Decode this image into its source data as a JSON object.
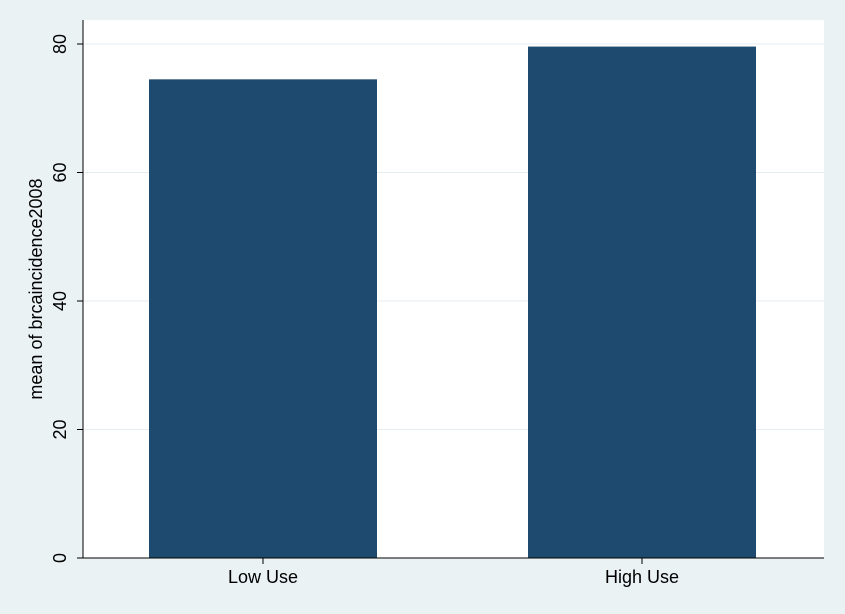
{
  "chart_data": {
    "type": "bar",
    "categories": [
      "Low Use",
      "High Use"
    ],
    "values": [
      74.5,
      79.6
    ],
    "title": "",
    "xlabel": "",
    "ylabel": "mean of brcaincidence2008",
    "ylim": [
      0,
      80
    ],
    "yticks": [
      0,
      20,
      40,
      60,
      80
    ],
    "grid": true,
    "colors": {
      "page_background": "#eaf2f3",
      "plot_background": "#ffffff",
      "bar": "#1f4a70",
      "gridline": "#e4eef0",
      "axis": "#000000",
      "text": "#000000"
    }
  }
}
